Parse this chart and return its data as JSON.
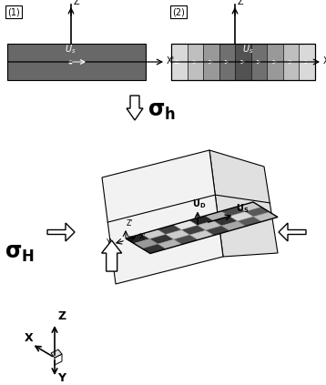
{
  "bg_color": "#ffffff",
  "fault1_gray": "#686868",
  "fault2_grays": [
    0.85,
    0.75,
    0.6,
    0.44,
    0.32,
    0.44,
    0.6,
    0.75,
    0.85
  ],
  "panel1_label": "(1)",
  "panel2_label": "(2)",
  "grid_pattern": [
    [
      0.15,
      0.8,
      0.25,
      0.9,
      0.15,
      0.7,
      0.3,
      0.8
    ],
    [
      0.6,
      0.2,
      0.8,
      0.25,
      0.75,
      0.2,
      0.85,
      0.35
    ],
    [
      0.2,
      0.7,
      0.3,
      0.8,
      0.25,
      0.65,
      0.35,
      0.75
    ]
  ],
  "sigma_h": "bold",
  "sigma_H": "bold"
}
